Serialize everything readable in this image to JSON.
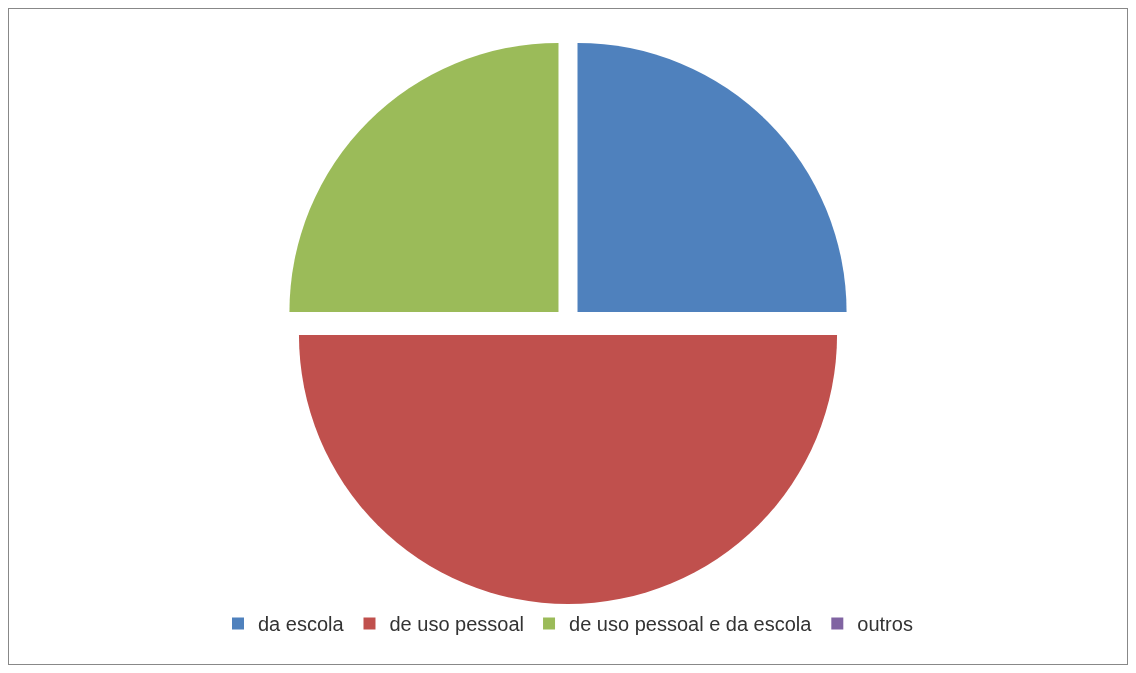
{
  "chart_data": {
    "type": "pie",
    "categories": [
      "da escola",
      "de uso pessoal",
      "de uso pessoal e da escola",
      "outros"
    ],
    "values": [
      25,
      50,
      25,
      0
    ],
    "colors": [
      "#4f81bd",
      "#c0504d",
      "#9bbb59",
      "#8064a2"
    ],
    "legend": "bottom"
  }
}
